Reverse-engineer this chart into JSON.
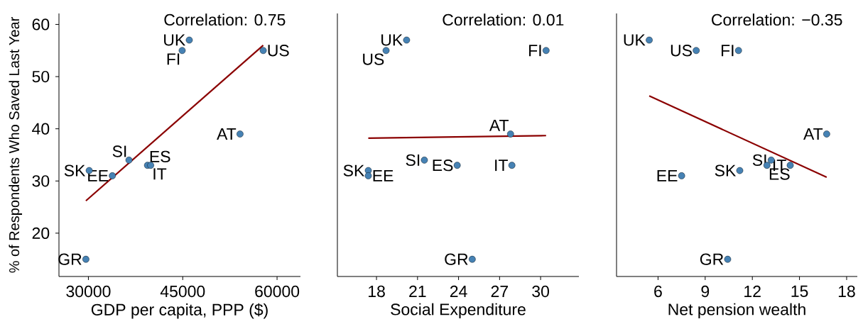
{
  "chart_data": [
    {
      "type": "scatter",
      "xlabel": "GDP per capita, PPP ($)",
      "ylabel": "% of Respondents Who Saved Last Year",
      "xlim": [
        25320,
        63720
      ],
      "xticks": [
        30000,
        45000,
        60000
      ],
      "ylim": [
        11.7,
        62.1
      ],
      "yticks": [
        20,
        30,
        40,
        50,
        60
      ],
      "marker": "circle",
      "series": [
        {
          "color": "#4682b4",
          "x": [
            46040,
            57800,
            44910,
            54110,
            36450,
            39400,
            39900,
            30130,
            33810,
            29600
          ],
          "values": [
            57,
            55,
            55,
            39,
            34,
            33,
            33,
            32,
            31,
            15
          ]
        },
        {
          "type": "line",
          "marker": "none",
          "color": "#8b0000",
          "x": [
            29600,
            57800
          ],
          "values": [
            26.2,
            56.0
          ]
        }
      ],
      "annotations": [
        "Correlation: 0.75",
        {
          "text": "UK",
          "x": 46040,
          "y": 57
        },
        {
          "text": "US",
          "x": 57800,
          "y": 55
        },
        {
          "text": "FI",
          "x": 44910,
          "y": 55
        },
        {
          "text": "AT",
          "x": 54110,
          "y": 39
        },
        {
          "text": "SI",
          "x": 36450,
          "y": 34
        },
        {
          "text": "ES",
          "x": 39400,
          "y": 33
        },
        {
          "text": "IT",
          "x": 39900,
          "y": 33
        },
        {
          "text": "SK",
          "x": 30130,
          "y": 32
        },
        {
          "text": "EE",
          "x": 33810,
          "y": 31
        },
        {
          "text": "GR",
          "x": 29600,
          "y": 15
        }
      ]
    },
    {
      "type": "scatter",
      "xlabel": "Social Expenditure",
      "xlim": [
        15.14,
        32.8
      ],
      "xticks": [
        18,
        21,
        24,
        27,
        30
      ],
      "ylim": [
        11.7,
        62.1
      ],
      "tick_labels": "x",
      "marker": "circle",
      "series": [
        {
          "color": "#4682b4",
          "x": [
            20.2,
            18.7,
            30.4,
            27.8,
            21.5,
            23.9,
            27.9,
            17.4,
            17.4,
            25.0
          ],
          "values": [
            57,
            55,
            55,
            39,
            34,
            33,
            33,
            32,
            31,
            15
          ]
        },
        {
          "type": "line",
          "marker": "none",
          "color": "#8b0000",
          "x": [
            17.4,
            30.4
          ],
          "values": [
            38.2,
            38.7
          ]
        }
      ],
      "annotations": [
        "Correlation: 0.01",
        {
          "text": "UK",
          "x": 20.2,
          "y": 57
        },
        {
          "text": "US",
          "x": 18.7,
          "y": 55
        },
        {
          "text": "FI",
          "x": 30.4,
          "y": 55
        },
        {
          "text": "AT",
          "x": 27.8,
          "y": 39
        },
        {
          "text": "SI",
          "x": 21.5,
          "y": 34
        },
        {
          "text": "ES",
          "x": 23.9,
          "y": 33
        },
        {
          "text": "IT",
          "x": 27.9,
          "y": 33
        },
        {
          "text": "SK",
          "x": 17.4,
          "y": 32
        },
        {
          "text": "EE",
          "x": 17.4,
          "y": 31
        },
        {
          "text": "GR",
          "x": 25.0,
          "y": 15
        }
      ]
    },
    {
      "type": "scatter",
      "xlabel": "Net pension wealth",
      "xlim": [
        3.36,
        18.68
      ],
      "xticks": [
        6,
        9,
        12,
        15,
        18
      ],
      "ylim": [
        11.7,
        62.1
      ],
      "tick_labels": "x",
      "marker": "circle",
      "series": [
        {
          "color": "#4682b4",
          "x": [
            5.44,
            8.43,
            11.12,
            16.73,
            13.2,
            12.93,
            14.41,
            11.2,
            7.5,
            10.43
          ],
          "values": [
            57,
            55,
            55,
            39,
            34,
            33,
            33,
            32,
            31,
            15
          ]
        },
        {
          "type": "line",
          "marker": "none",
          "color": "#8b0000",
          "x": [
            5.44,
            16.73
          ],
          "values": [
            46.3,
            30.7
          ]
        }
      ],
      "annotations": [
        "Correlation: −0.35",
        {
          "text": "UK",
          "x": 5.44,
          "y": 57
        },
        {
          "text": "US",
          "x": 8.43,
          "y": 55
        },
        {
          "text": "FI",
          "x": 11.12,
          "y": 55
        },
        {
          "text": "AT",
          "x": 16.73,
          "y": 39
        },
        {
          "text": "SI",
          "x": 13.2,
          "y": 34
        },
        {
          "text": "ES",
          "x": 12.93,
          "y": 33
        },
        {
          "text": "IT",
          "x": 14.41,
          "y": 33
        },
        {
          "text": "SK",
          "x": 11.2,
          "y": 32
        },
        {
          "text": "EE",
          "x": 7.5,
          "y": 31
        },
        {
          "text": "GR",
          "x": 10.43,
          "y": 15
        }
      ]
    }
  ]
}
